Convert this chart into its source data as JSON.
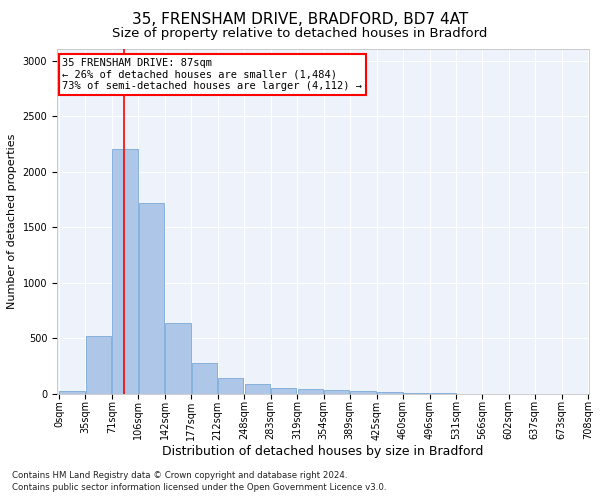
{
  "title1": "35, FRENSHAM DRIVE, BRADFORD, BD7 4AT",
  "title2": "Size of property relative to detached houses in Bradford",
  "xlabel": "Distribution of detached houses by size in Bradford",
  "ylabel": "Number of detached properties",
  "bar_color": "#aec6e8",
  "bar_edge_color": "#6a9fd4",
  "background_color": "#eef2fa",
  "grid_color": "#ffffff",
  "red_line_x": 87,
  "annotation_line1": "35 FRENSHAM DRIVE: 87sqm",
  "annotation_line2": "← 26% of detached houses are smaller (1,484)",
  "annotation_line3": "73% of semi-detached houses are larger (4,112) →",
  "footnote1": "Contains HM Land Registry data © Crown copyright and database right 2024.",
  "footnote2": "Contains public sector information licensed under the Open Government Licence v3.0.",
  "bin_edges": [
    0,
    35,
    71,
    106,
    142,
    177,
    212,
    248,
    283,
    319,
    354,
    389,
    425,
    460,
    496,
    531,
    566,
    602,
    637,
    673,
    708
  ],
  "bar_heights": [
    25,
    520,
    2200,
    1720,
    640,
    280,
    145,
    85,
    50,
    40,
    32,
    25,
    18,
    8,
    4,
    3,
    2,
    1,
    1,
    0
  ],
  "ylim": [
    0,
    3100
  ],
  "yticks": [
    0,
    500,
    1000,
    1500,
    2000,
    2500,
    3000
  ],
  "title1_fontsize": 11,
  "title2_fontsize": 9.5,
  "xlabel_fontsize": 9,
  "ylabel_fontsize": 8,
  "tick_fontsize": 7,
  "annot_fontsize": 7.5
}
